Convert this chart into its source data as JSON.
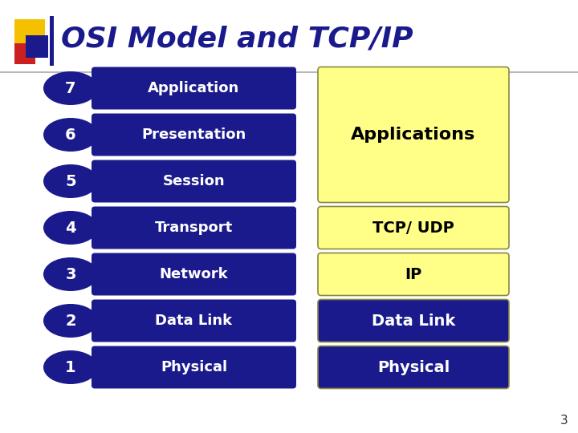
{
  "title": "OSI Model and TCP/IP",
  "title_color": "#1a1a8c",
  "title_fontsize": 26,
  "background_color": "#ffffff",
  "layers": [
    {
      "num": 7,
      "label": "Application"
    },
    {
      "num": 6,
      "label": "Presentation"
    },
    {
      "num": 5,
      "label": "Session"
    },
    {
      "num": 4,
      "label": "Transport"
    },
    {
      "num": 3,
      "label": "Network"
    },
    {
      "num": 2,
      "label": "Data Link"
    },
    {
      "num": 1,
      "label": "Physical"
    }
  ],
  "tcp_boxes": [
    {
      "label": "Applications",
      "rows": [
        7,
        6,
        5
      ],
      "bg": "#ffff88",
      "text_color": "#000000",
      "big": true,
      "edgecolor": "#999966"
    },
    {
      "label": "TCP/ UDP",
      "rows": [
        4
      ],
      "bg": "#ffff88",
      "text_color": "#000000",
      "big": false,
      "edgecolor": "#999966"
    },
    {
      "label": "IP",
      "rows": [
        3
      ],
      "bg": "#ffff88",
      "text_color": "#000000",
      "big": false,
      "edgecolor": "#999966"
    },
    {
      "label": "Data Link",
      "rows": [
        2
      ],
      "bg": "#1a1a8c",
      "text_color": "#ffffff",
      "big": false,
      "edgecolor": "#1a1a8c"
    },
    {
      "label": "Physical",
      "rows": [
        1
      ],
      "bg": "#1a1a8c",
      "text_color": "#ffffff",
      "big": false,
      "edgecolor": "#1a1a8c"
    }
  ],
  "ellipse_color": "#1a1a8c",
  "ellipse_text_color": "#ffffff",
  "rect_color": "#1a1a8c",
  "rect_text_color": "#ffffff",
  "page_number": "3"
}
